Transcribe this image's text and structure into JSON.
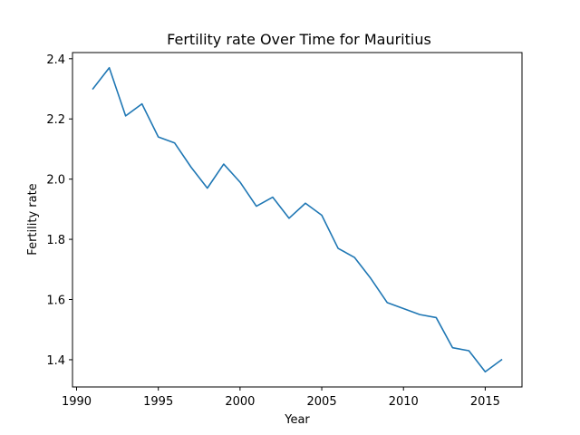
{
  "chart_data": {
    "type": "line",
    "title": "Fertility rate Over Time for Mauritius",
    "xlabel": "Year",
    "ylabel": "Fertility rate",
    "xlim": [
      1989.75,
      2017.25
    ],
    "ylim": [
      1.3095,
      2.4205
    ],
    "x_ticks": [
      1990,
      1995,
      2000,
      2005,
      2010,
      2015
    ],
    "x_tick_labels": [
      "1990",
      "1995",
      "2000",
      "2005",
      "2010",
      "2015"
    ],
    "y_ticks": [
      1.4,
      1.6,
      1.8,
      2.0,
      2.2,
      2.4
    ],
    "y_tick_labels": [
      "1.4",
      "1.6",
      "1.8",
      "2.0",
      "2.2",
      "2.4"
    ],
    "grid": false,
    "series": [
      {
        "color": "#1f77b4",
        "x": [
          1991,
          1992,
          1993,
          1994,
          1995,
          1996,
          1997,
          1998,
          1999,
          2000,
          2001,
          2002,
          2003,
          2004,
          2005,
          2006,
          2007,
          2008,
          2009,
          2010,
          2011,
          2012,
          2013,
          2014,
          2015,
          2016
        ],
        "y": [
          2.3,
          2.37,
          2.21,
          2.25,
          2.14,
          2.12,
          2.04,
          1.97,
          2.05,
          1.99,
          1.91,
          1.94,
          1.87,
          1.92,
          1.88,
          1.77,
          1.74,
          1.67,
          1.59,
          1.57,
          1.55,
          1.54,
          1.44,
          1.43,
          1.36,
          1.4
        ]
      }
    ]
  }
}
